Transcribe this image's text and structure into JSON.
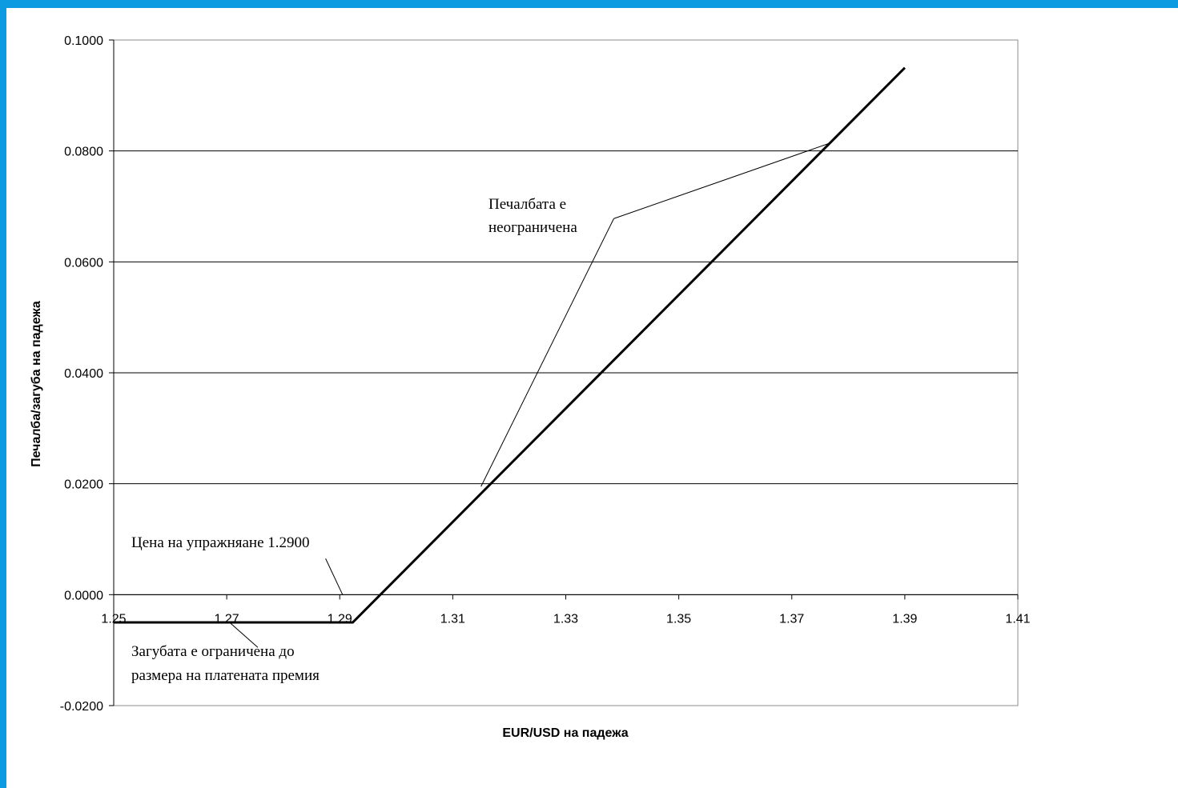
{
  "colors": {
    "background_border": "#0c9ae0",
    "plot_background": "#ffffff",
    "line": "#000000"
  },
  "chart_data": {
    "type": "line",
    "title": "",
    "xlabel": "EUR/USD  на падежа",
    "ylabel": "Печалба/загуба на падежа",
    "xlim": [
      1.25,
      1.41
    ],
    "ylim": [
      -0.02,
      0.1
    ],
    "x_ticks": [
      "1.25",
      "1.27",
      "1.29",
      "1.31",
      "1.33",
      "1.35",
      "1.37",
      "1.39",
      "1.41"
    ],
    "y_ticks": [
      "-0.0200",
      "0.0000",
      "0.0200",
      "0.0400",
      "0.0600",
      "0.0800",
      "0.1000"
    ],
    "grid": "horizontal",
    "legend": "none",
    "series": [
      {
        "x": [
          1.25,
          1.2923,
          1.39
        ],
        "y": [
          -0.005,
          -0.005,
          0.095
        ]
      }
    ],
    "annotations": [
      {
        "id": "profit",
        "lines": [
          "Печалбата е",
          "неограничена"
        ],
        "pointers": [
          [
            1.315,
            0.0195
          ],
          [
            1.377,
            0.0815
          ]
        ],
        "elbow": [
          1.3385,
          0.0678
        ]
      },
      {
        "id": "strike",
        "lines": [
          "Цена на упражняане 1.2900"
        ],
        "pointers": [
          [
            1.2905,
            0.0
          ]
        ],
        "elbow": [
          1.2875,
          0.0065
        ]
      },
      {
        "id": "loss",
        "lines": [
          "Загубата е ограничена до",
          "размера на платената премия"
        ],
        "pointers": [
          [
            1.2705,
            -0.005
          ]
        ],
        "elbow": [
          1.2755,
          -0.0095
        ]
      }
    ]
  }
}
